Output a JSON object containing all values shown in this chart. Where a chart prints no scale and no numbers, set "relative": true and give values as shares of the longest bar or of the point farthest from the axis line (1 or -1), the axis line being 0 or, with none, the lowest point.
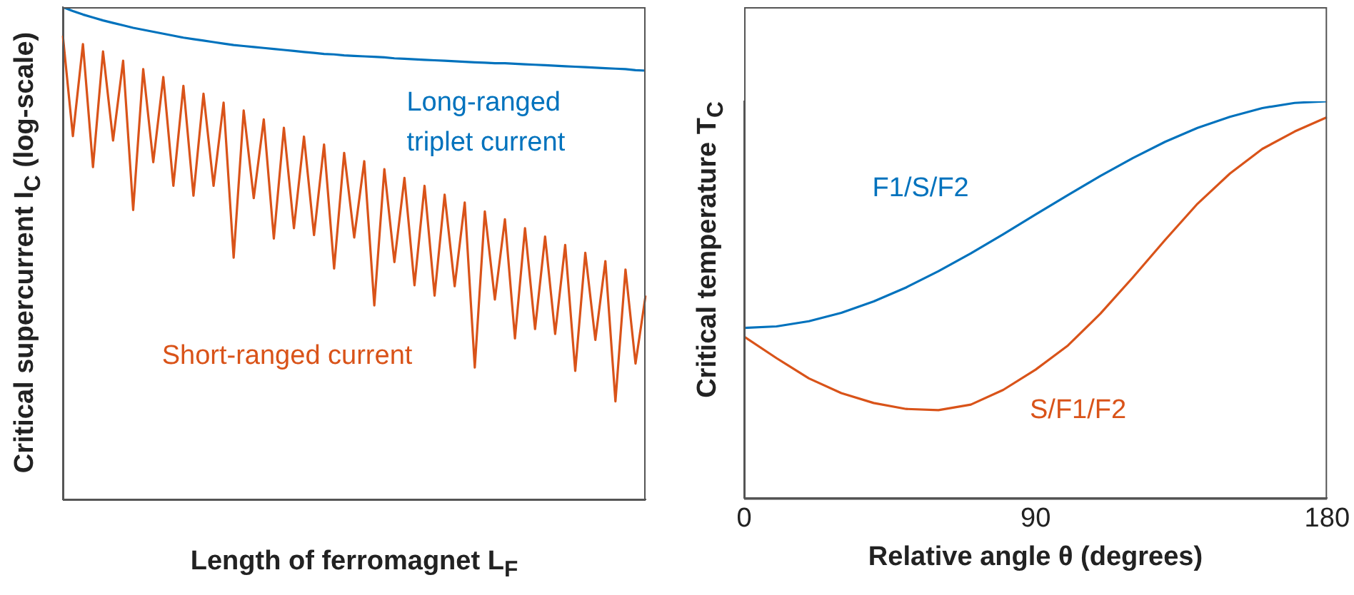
{
  "chart_data": [
    {
      "type": "line",
      "relative": true,
      "tick_labels": false,
      "xlabel": "Length of ferromagnet L$_{F}$",
      "ylabel": "Critical supercurrent I$_{C}$ (log-scale)",
      "categories": [
        null,
        null,
        null,
        null,
        null,
        null,
        null,
        null,
        null,
        null,
        null,
        null,
        null,
        null,
        null,
        null,
        null,
        null,
        null,
        null,
        null,
        null,
        null,
        null,
        null,
        null,
        null,
        null,
        null,
        null,
        null,
        null,
        null,
        null,
        null,
        null,
        null,
        null,
        null,
        null,
        null,
        null,
        null,
        null,
        null,
        null,
        null,
        null,
        null,
        null,
        null,
        null,
        null,
        null,
        null,
        null,
        null,
        null,
        null
      ],
      "series": [
        {
          "name": "Long-ranged triplet current",
          "color": "#0072bd",
          "values": [
            1.0,
            0.992,
            0.985,
            0.979,
            0.973,
            0.968,
            0.963,
            0.958,
            0.954,
            0.95,
            0.946,
            0.942,
            0.938,
            0.935,
            0.932,
            0.929,
            0.926,
            0.923,
            0.921,
            0.919,
            0.917,
            0.915,
            0.913,
            0.911,
            0.909,
            0.907,
            0.905,
            0.904,
            0.902,
            0.901,
            0.9,
            0.899,
            0.898,
            0.896,
            0.895,
            0.894,
            0.893,
            0.892,
            0.891,
            0.89,
            0.889,
            0.888,
            0.887,
            0.886,
            0.886,
            0.885,
            0.884,
            0.883,
            0.882,
            0.881,
            0.88,
            0.879,
            0.878,
            0.877,
            0.876,
            0.875,
            0.874,
            0.872,
            0.871
          ]
        },
        {
          "name": "Short-ranged current",
          "color": "#d95319",
          "values": [
            0.942,
            0.738,
            0.925,
            0.675,
            0.91,
            0.729,
            0.891,
            0.588,
            0.874,
            0.685,
            0.858,
            0.637,
            0.84,
            0.617,
            0.824,
            0.637,
            0.806,
            0.491,
            0.79,
            0.612,
            0.772,
            0.53,
            0.755,
            0.551,
            0.737,
            0.537,
            0.721,
            0.469,
            0.704,
            0.532,
            0.687,
            0.394,
            0.671,
            0.482,
            0.653,
            0.435,
            0.637,
            0.414,
            0.619,
            0.433,
            0.603,
            0.268,
            0.585,
            0.406,
            0.569,
            0.327,
            0.551,
            0.346,
            0.534,
            0.336,
            0.517,
            0.261,
            0.501,
            0.324,
            0.484,
            0.199,
            0.467,
            0.276,
            0.414
          ]
        }
      ]
    },
    {
      "type": "line",
      "relative": true,
      "tick_labels": "x",
      "xlabel": "Relative angle θ (degrees)",
      "ylabel": "Critical temperature T$_{C}$",
      "x": [
        0,
        10,
        20,
        30,
        40,
        50,
        60,
        70,
        80,
        90,
        100,
        110,
        120,
        130,
        140,
        150,
        160,
        170,
        180
      ],
      "xlim": [
        0,
        180
      ],
      "xticks": [
        0,
        90,
        180
      ],
      "series": [
        {
          "name": "F1/S/F2",
          "color": "#0072bd",
          "values": [
            0.429,
            0.433,
            0.446,
            0.467,
            0.496,
            0.531,
            0.572,
            0.617,
            0.665,
            0.715,
            0.764,
            0.812,
            0.857,
            0.898,
            0.933,
            0.961,
            0.983,
            0.996,
            1.0
          ]
        },
        {
          "name": "S/F1/F2",
          "color": "#d95319",
          "values": [
            0.407,
            0.353,
            0.302,
            0.265,
            0.24,
            0.225,
            0.222,
            0.236,
            0.273,
            0.324,
            0.385,
            0.465,
            0.556,
            0.651,
            0.742,
            0.818,
            0.88,
            0.924,
            0.96
          ]
        }
      ]
    }
  ]
}
